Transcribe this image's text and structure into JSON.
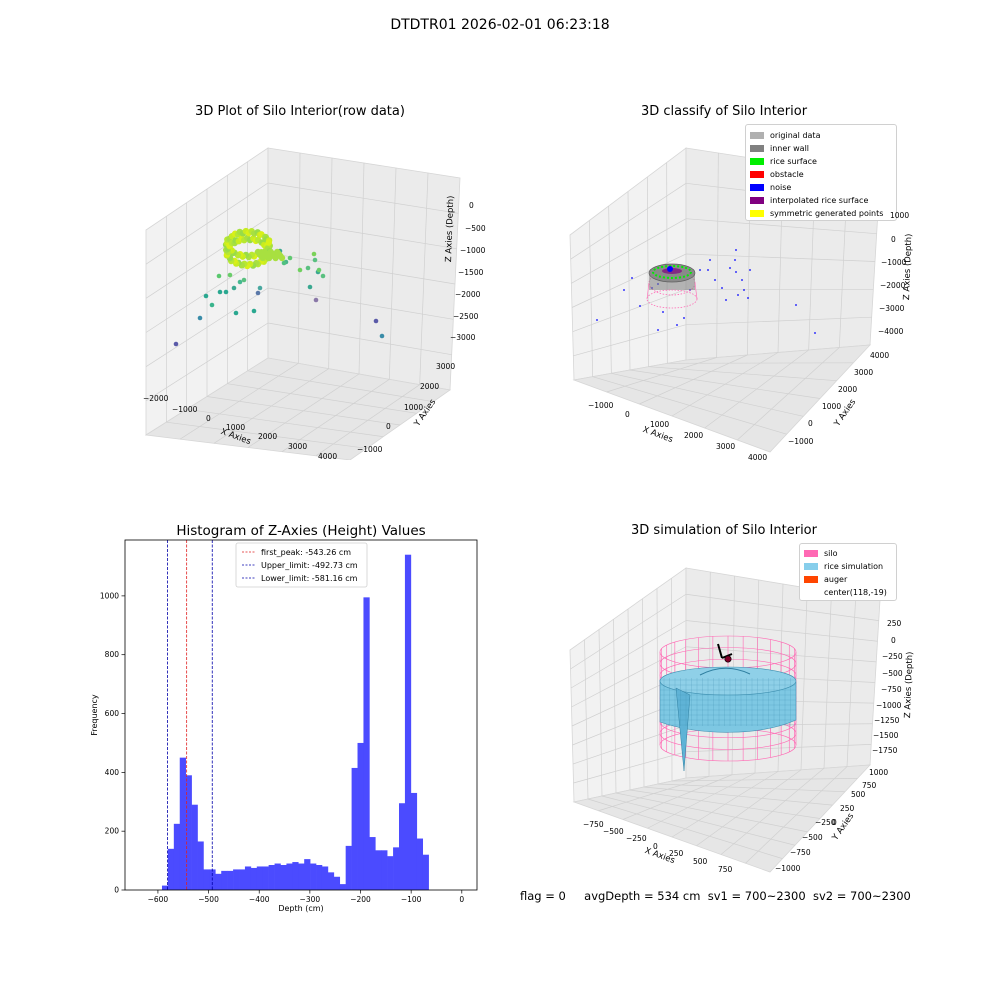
{
  "figure": {
    "suptitle": "DTDTR01 2026-02-01 06:23:18",
    "footer": {
      "flag": "flag = 0",
      "avg_depth": "avgDepth = 534 cm",
      "sv1": "sv1 = 700~2300",
      "sv2": "sv2 = 700~2300"
    }
  },
  "colors": {
    "histogram_bar": "#4b4bff",
    "first_peak_line": "#e02020",
    "limit_lines": "#0000aa",
    "pane": "#f2f2f2",
    "grid": "#d6d6d6",
    "silo_wire": "#ff69b4",
    "rice_surface": "#7ec8e3",
    "auger": "#ff4500"
  },
  "chart_data": [
    {
      "type": "scatter",
      "subtype": "3d",
      "title": "3D Plot of Silo Interior(row data)",
      "xlabel": "X Axies",
      "ylabel": "Y Axies",
      "zlabel": "Z Axies (Depth)",
      "x_ticks": [
        "−2000",
        "−1000",
        "0",
        "1000",
        "2000",
        "3000",
        "4000"
      ],
      "y_ticks": [
        "−1000",
        "0",
        "1000",
        "2000",
        "3000"
      ],
      "z_ticks": [
        "0",
        "−500",
        "−1000",
        "−1500",
        "−2000",
        "−2500",
        "−3000"
      ],
      "colormap": "viridis",
      "grid": true
    },
    {
      "type": "scatter",
      "subtype": "3d",
      "title": "3D classify of Silo Interior",
      "xlabel": "X Axies",
      "ylabel": "Y Axies",
      "zlabel": "Z Axies (Depth)",
      "x_ticks": [
        "−1000",
        "0",
        "1000",
        "2000",
        "3000",
        "4000"
      ],
      "y_ticks": [
        "−1000",
        "0",
        "1000",
        "2000",
        "3000",
        "4000"
      ],
      "z_ticks": [
        "1000",
        "0",
        "−1000",
        "−2000",
        "−3000",
        "−4000"
      ],
      "legend_position": "top-right",
      "legend": [
        {
          "label": "original data",
          "color": "#b0b0b0"
        },
        {
          "label": "inner wall",
          "color": "#808080"
        },
        {
          "label": "rice surface",
          "color": "#00ee00"
        },
        {
          "label": "obstacle",
          "color": "#ff0000"
        },
        {
          "label": "noise",
          "color": "#0000ff"
        },
        {
          "label": "interpolated rice surface",
          "color": "#800080"
        },
        {
          "label": "symmetric generated points",
          "color": "#ffff00"
        }
      ],
      "grid": true
    },
    {
      "type": "bar",
      "subtype": "histogram",
      "title": "Histogram of Z-Axies (Height) Values",
      "xlabel": "Depth (cm)",
      "ylabel": "Frequency",
      "xlim": [
        -665,
        30
      ],
      "ylim": [
        0,
        1190
      ],
      "x_ticks": [
        -600,
        -500,
        -400,
        -300,
        -200,
        -100,
        0
      ],
      "y_ticks": [
        0,
        200,
        400,
        600,
        800,
        1000
      ],
      "bin_width": 11.7,
      "bin_starts": [
        -592,
        -580.3,
        -568.6,
        -556.9,
        -545.2,
        -533.5,
        -521.8,
        -510.1,
        -498.4,
        -486.7,
        -475,
        -463.3,
        -451.6,
        -439.9,
        -428.2,
        -416.5,
        -404.8,
        -393.1,
        -381.4,
        -369.7,
        -358,
        -346.3,
        -334.6,
        -322.9,
        -311.2,
        -299.5,
        -287.8,
        -276.1,
        -264.4,
        -252.7,
        -241,
        -229.3,
        -217.6,
        -205.9,
        -194.2,
        -182.5,
        -170.8,
        -159.1,
        -147.4,
        -135.7,
        -124,
        -112.3,
        -100.6,
        -88.9,
        -77.2,
        -65.5,
        -53.8,
        -42.1,
        -30.4,
        -18.7,
        -7
      ],
      "counts": [
        15,
        140,
        225,
        450,
        390,
        290,
        165,
        70,
        70,
        55,
        65,
        65,
        70,
        70,
        80,
        75,
        80,
        80,
        85,
        90,
        85,
        90,
        95,
        90,
        105,
        90,
        85,
        80,
        60,
        45,
        20,
        150,
        415,
        500,
        995,
        180,
        135,
        135,
        115,
        145,
        295,
        1140,
        330,
        175,
        120,
        0,
        0,
        0,
        0,
        0,
        0
      ],
      "vlines": [
        {
          "x": -543.26,
          "label": "first_peak: -543.26 cm",
          "color": "#e02020"
        },
        {
          "x": -492.73,
          "label": "Upper_limit: -492.73 cm",
          "color": "#0000aa"
        },
        {
          "x": -581.16,
          "label": "Lower_limit: -581.16 cm",
          "color": "#0000aa"
        }
      ],
      "legend_position": "top-center",
      "grid": false
    },
    {
      "type": "surface",
      "subtype": "3d",
      "title": "3D simulation of Silo Interior",
      "xlabel": "X Axies",
      "ylabel": "Y Axies",
      "zlabel": "Z Axies (Depth)",
      "x_ticks": [
        "−750",
        "−500",
        "−250",
        "0",
        "250",
        "500",
        "750"
      ],
      "y_ticks": [
        "−1000",
        "−750",
        "−500",
        "−250",
        "0",
        "250",
        "500",
        "750",
        "1000"
      ],
      "z_ticks": [
        "250",
        "0",
        "−250",
        "−500",
        "−750",
        "−1000",
        "−1250",
        "−1500",
        "−1750"
      ],
      "legend_position": "top-right",
      "legend": [
        {
          "label": "silo",
          "color": "#ff69b4"
        },
        {
          "label": "rice simulation",
          "color": "#87ceeb"
        },
        {
          "label": "auger",
          "color": "#ff4500"
        },
        {
          "label": "center(118,-19)",
          "color": ""
        }
      ],
      "grid": true
    }
  ]
}
